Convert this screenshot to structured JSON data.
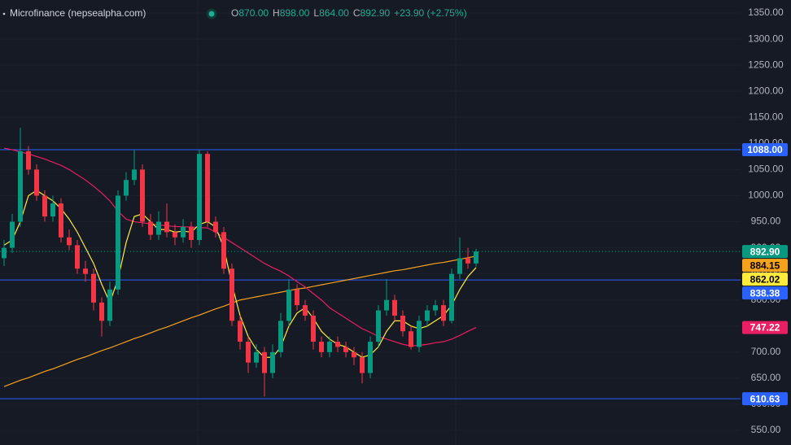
{
  "chart_data": {
    "type": "candlestick",
    "title": "Microfinance (nepsealpha.com)",
    "ohlc_legend": [
      {
        "key": "O",
        "text": "870.00"
      },
      {
        "key": "H",
        "text": "898.00"
      },
      {
        "key": "L",
        "text": "864.00"
      },
      {
        "key": "C",
        "text": "892.90"
      }
    ],
    "change": "+23.90 (+2.75%)",
    "up_color": "#089981",
    "down_color": "#f23645",
    "ylim": [
      522,
      1375
    ],
    "yticks": [
      {
        "value": 550,
        "label": "550.00"
      },
      {
        "value": 600,
        "label": "600.00"
      },
      {
        "value": 650,
        "label": "650.00"
      },
      {
        "value": 700,
        "label": "700.00"
      },
      {
        "value": 750,
        "label": "750.00"
      },
      {
        "value": 800,
        "label": "800.00"
      },
      {
        "value": 850,
        "label": "850.00"
      },
      {
        "value": 900,
        "label": "900.00"
      },
      {
        "value": 950,
        "label": "950.00"
      },
      {
        "value": 1000,
        "label": "1000.00"
      },
      {
        "value": 1050,
        "label": "1050.00"
      },
      {
        "value": 1100,
        "label": "1100.00"
      },
      {
        "value": 1150,
        "label": "1150.00"
      },
      {
        "value": 1200,
        "label": "1200.00"
      },
      {
        "value": 1250,
        "label": "1250.00"
      },
      {
        "value": 1300,
        "label": "1300.00"
      },
      {
        "value": 1350,
        "label": "1350.00"
      }
    ],
    "open": [
      880,
      900,
      950,
      1085,
      1050,
      1000,
      960,
      985,
      920,
      905,
      860,
      850,
      795,
      760,
      820,
      1000,
      1030,
      1050,
      950,
      925,
      950,
      930,
      920,
      940,
      915,
      1080,
      950,
      930,
      860,
      760,
      720,
      680,
      700,
      660,
      700,
      760,
      820,
      790,
      770,
      720,
      700,
      720,
      710,
      700,
      690,
      660,
      720,
      780,
      800,
      770,
      740,
      710,
      760,
      780,
      790,
      760,
      850,
      880,
      870
    ],
    "high": [
      915,
      965,
      1130,
      1095,
      1060,
      1010,
      1000,
      995,
      935,
      915,
      875,
      860,
      805,
      835,
      1010,
      1045,
      1088,
      1060,
      965,
      970,
      985,
      945,
      955,
      950,
      1088,
      1085,
      960,
      940,
      870,
      770,
      730,
      715,
      710,
      715,
      775,
      840,
      830,
      800,
      780,
      730,
      730,
      730,
      720,
      710,
      700,
      730,
      790,
      840,
      810,
      780,
      750,
      770,
      790,
      800,
      800,
      860,
      920,
      900,
      898
    ],
    "low": [
      865,
      890,
      940,
      1040,
      990,
      950,
      950,
      910,
      895,
      850,
      835,
      780,
      730,
      750,
      810,
      990,
      1020,
      940,
      915,
      915,
      920,
      905,
      910,
      900,
      905,
      940,
      920,
      850,
      750,
      705,
      660,
      670,
      615,
      650,
      690,
      750,
      780,
      760,
      705,
      690,
      690,
      700,
      690,
      675,
      640,
      650,
      710,
      770,
      760,
      730,
      705,
      700,
      750,
      770,
      750,
      755,
      840,
      860,
      864
    ],
    "close": [
      900,
      950,
      1085,
      1050,
      1000,
      960,
      985,
      920,
      905,
      860,
      850,
      795,
      760,
      820,
      1000,
      1030,
      1050,
      950,
      925,
      950,
      930,
      920,
      940,
      915,
      1080,
      950,
      930,
      860,
      760,
      720,
      680,
      700,
      660,
      700,
      760,
      820,
      790,
      770,
      720,
      700,
      720,
      710,
      700,
      690,
      660,
      720,
      780,
      800,
      770,
      740,
      710,
      760,
      780,
      790,
      760,
      850,
      880,
      870,
      892.9
    ],
    "moving_averages": [
      {
        "color": "#f7a21b",
        "values": [
          634,
          640,
          646,
          651,
          657,
          663,
          668,
          674,
          680,
          686,
          691,
          697,
          703,
          708,
          714,
          720,
          726,
          731,
          737,
          743,
          748,
          754,
          760,
          766,
          771,
          777,
          783,
          788,
          794,
          800,
          803,
          806,
          809,
          812,
          815,
          818,
          821,
          823,
          826,
          829,
          832,
          835,
          838,
          841,
          844,
          847,
          850,
          853,
          856,
          858,
          861,
          864,
          867,
          870,
          872,
          875,
          878,
          881,
          884.15
        ]
      },
      {
        "color": "#e91e63",
        "values": [
          1091,
          1088,
          1084,
          1080,
          1075,
          1070,
          1064,
          1058,
          1050,
          1040,
          1030,
          1018,
          1005,
          990,
          970,
          955,
          950,
          948,
          946,
          944,
          942,
          941,
          940,
          940,
          939,
          938,
          930,
          920,
          910,
          900,
          890,
          880,
          870,
          862,
          855,
          846,
          835,
          825,
          812,
          800,
          785,
          775,
          765,
          755,
          745,
          738,
          730,
          725,
          720,
          715,
          712,
          713,
          715,
          718,
          720,
          725,
          732,
          740,
          747.22
        ]
      },
      {
        "color": "#ffeb3b",
        "values": [
          905,
          915,
          950,
          1000,
          1010,
          1000,
          990,
          975,
          955,
          930,
          900,
          870,
          830,
          795,
          840,
          910,
          960,
          965,
          950,
          935,
          935,
          930,
          932,
          930,
          945,
          950,
          940,
          900,
          830,
          770,
          730,
          705,
          690,
          690,
          710,
          750,
          775,
          785,
          765,
          740,
          725,
          715,
          710,
          700,
          690,
          695,
          710,
          740,
          760,
          760,
          750,
          745,
          750,
          760,
          770,
          790,
          820,
          845,
          862.02
        ]
      }
    ],
    "horizontal_lines": [
      {
        "value": 1088,
        "label": "1088.00",
        "color": "#2962ff"
      },
      {
        "value": 838.38,
        "label": "838.38",
        "color": "#2962ff"
      },
      {
        "value": 610.63,
        "label": "610.63",
        "color": "#2962ff"
      }
    ],
    "last_price": {
      "value": 892.9,
      "label": "892.90",
      "color": "#089981"
    },
    "price_markers": [
      {
        "value": 884.15,
        "label": "884.15",
        "color": "#f7a21b",
        "text_color": "#000000"
      },
      {
        "value": 862.02,
        "label": "862.02",
        "color": "#ffeb3b",
        "text_color": "#000000"
      },
      {
        "value": 747.22,
        "label": "747.22",
        "color": "#e91e63",
        "text_color": "#ffffff"
      }
    ]
  }
}
